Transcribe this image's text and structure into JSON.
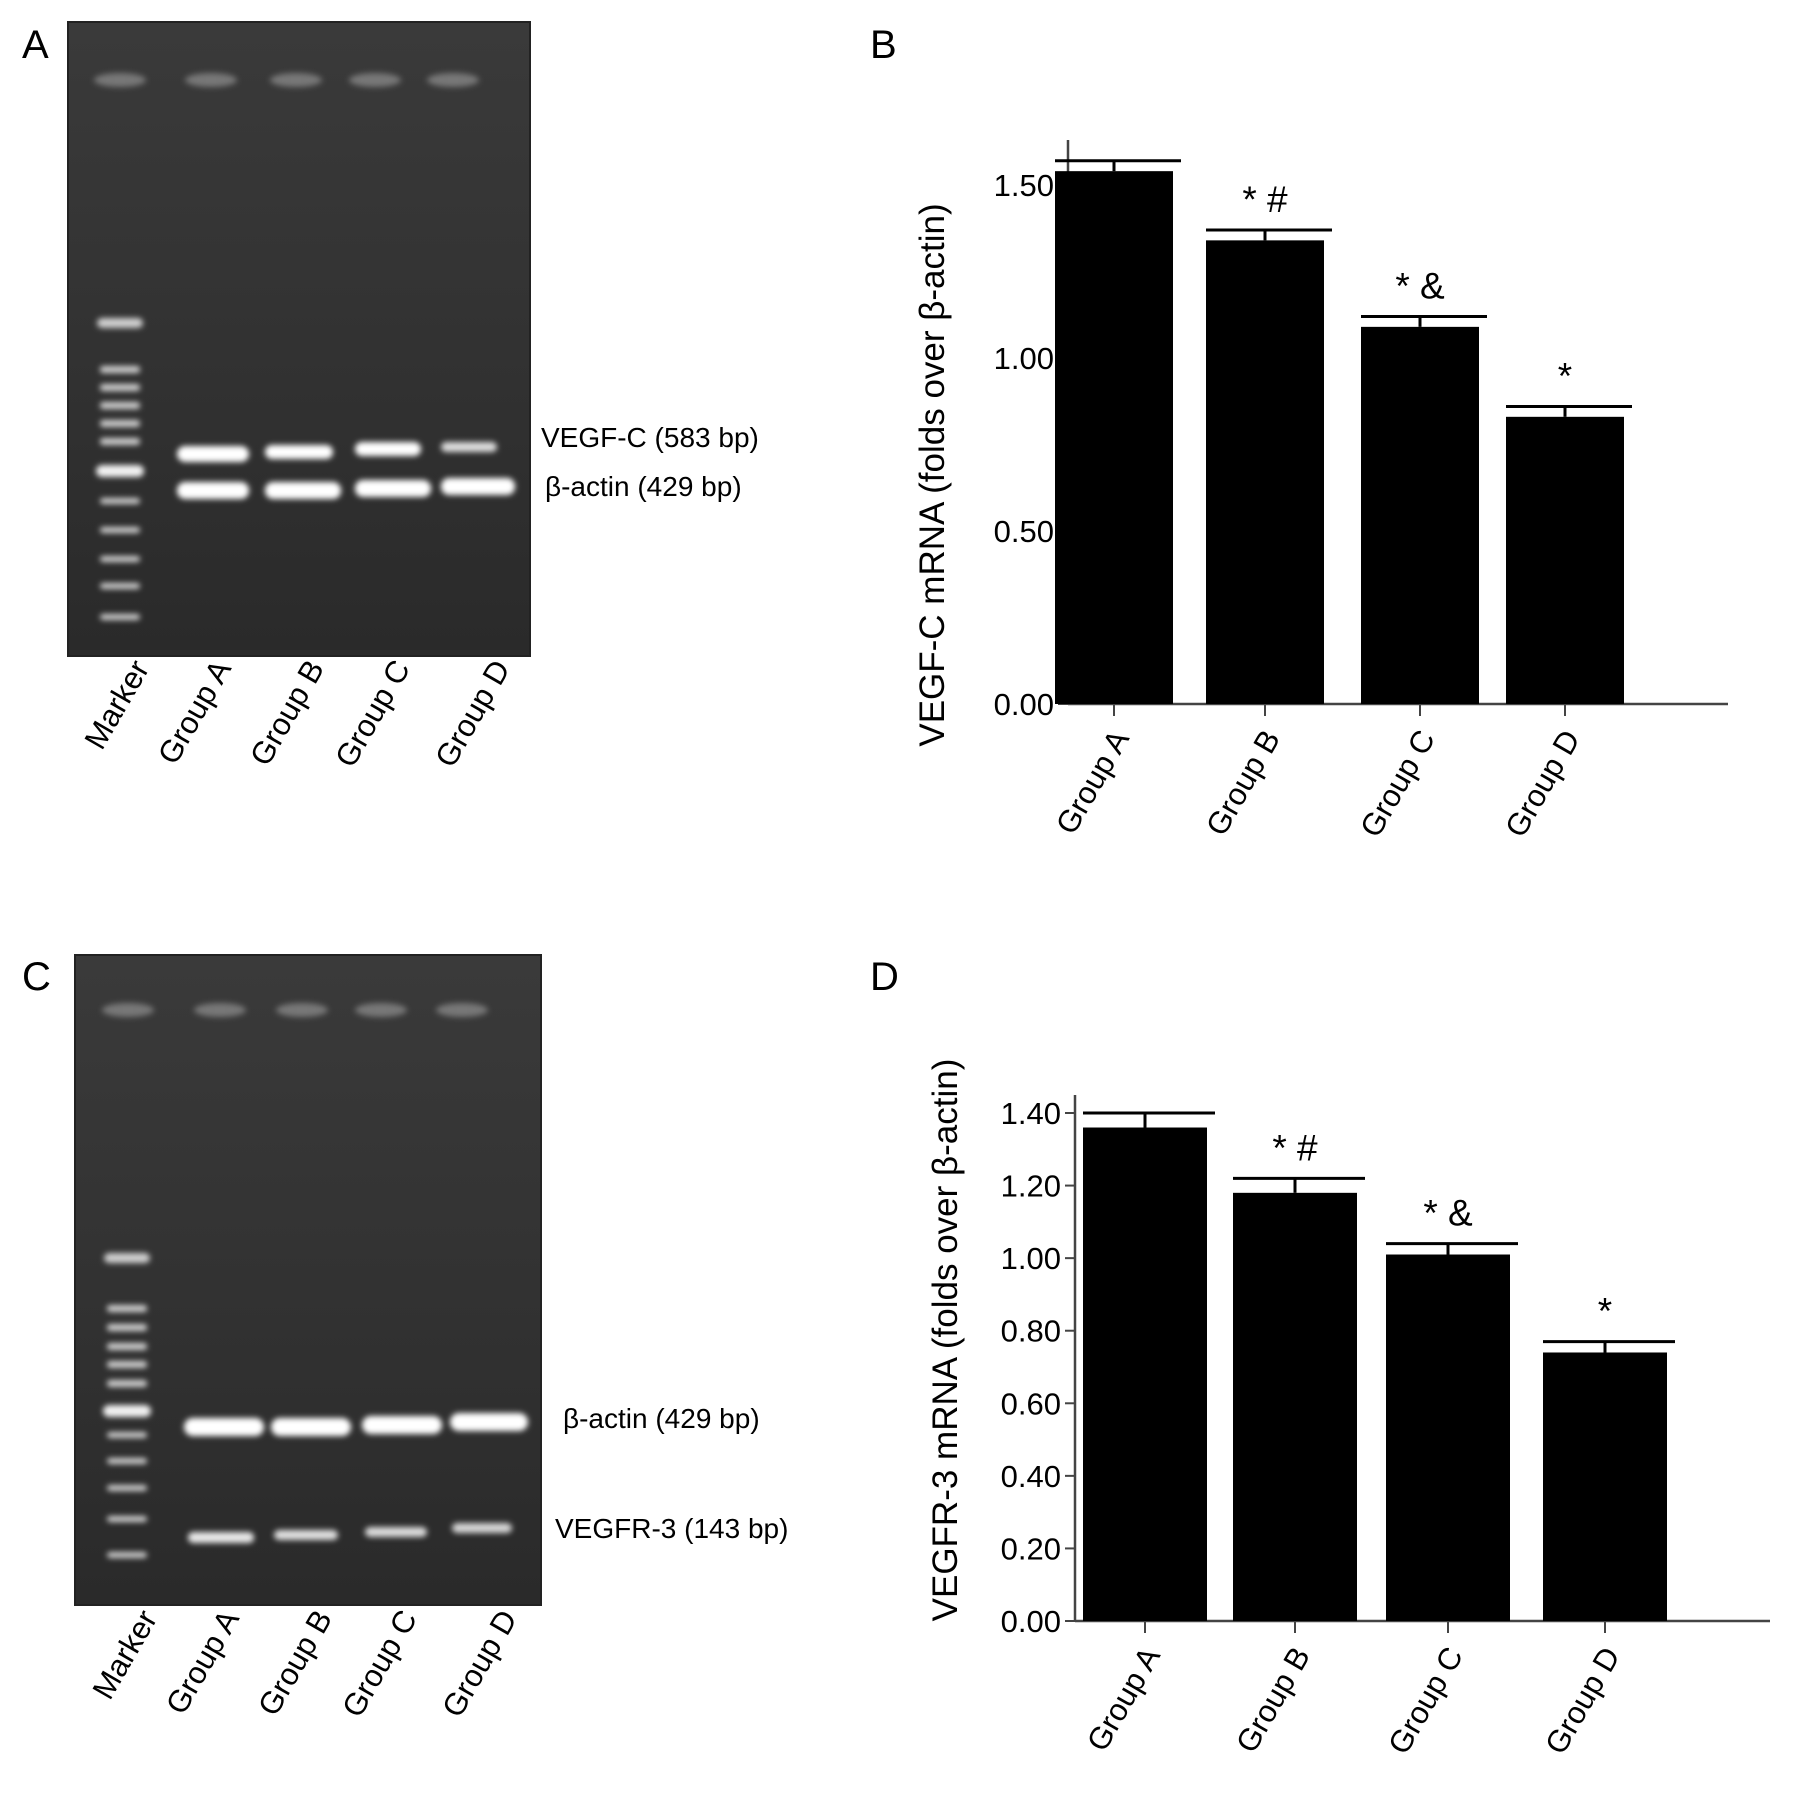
{
  "panels": [
    {
      "letter": "A",
      "gel": {
        "lane_labels": [
          "Marker",
          "Group A",
          "Group B",
          "Group C",
          "Group D"
        ],
        "band_labels": [
          "VEGF-C (583 bp)",
          "β-actin (429 bp)"
        ]
      }
    },
    {
      "letter": "B",
      "chart_index": 0
    },
    {
      "letter": "C",
      "gel": {
        "lane_labels": [
          "Marker",
          "Group A",
          "Group B",
          "Group C",
          "Group D"
        ],
        "band_labels": [
          "β-actin (429 bp)",
          "VEGFR-3 (143 bp)"
        ]
      }
    },
    {
      "letter": "D",
      "chart_index": 1
    }
  ],
  "chart_data": [
    {
      "type": "bar",
      "categories": [
        "Group A",
        "Group B",
        "Group C",
        "Group D"
      ],
      "values": [
        1.54,
        1.34,
        1.09,
        0.83
      ],
      "errors": [
        0.03,
        0.03,
        0.03,
        0.03
      ],
      "significance": [
        "",
        "* #",
        "* &",
        "*"
      ],
      "title": "",
      "xlabel": "",
      "ylabel": "VEGF-C mRNA (folds over β-actin)",
      "ylim": [
        0,
        1.5
      ],
      "yticks": [
        "0.00",
        "0.50",
        "1.00",
        "1.50"
      ],
      "bar_color": "#000000",
      "grid": false
    },
    {
      "type": "bar",
      "categories": [
        "Group A",
        "Group B",
        "Group C",
        "Group D"
      ],
      "values": [
        1.36,
        1.18,
        1.01,
        0.74
      ],
      "errors": [
        0.04,
        0.04,
        0.03,
        0.03
      ],
      "significance": [
        "",
        "* #",
        "* &",
        "*"
      ],
      "title": "",
      "xlabel": "",
      "ylabel": "VEGFR-3 mRNA (folds over β-actin)",
      "ylim": [
        0,
        1.4
      ],
      "yticks": [
        "0.00",
        "0.20",
        "0.40",
        "0.60",
        "0.80",
        "1.00",
        "1.20",
        "1.40"
      ],
      "bar_color": "#000000",
      "grid": false
    }
  ]
}
